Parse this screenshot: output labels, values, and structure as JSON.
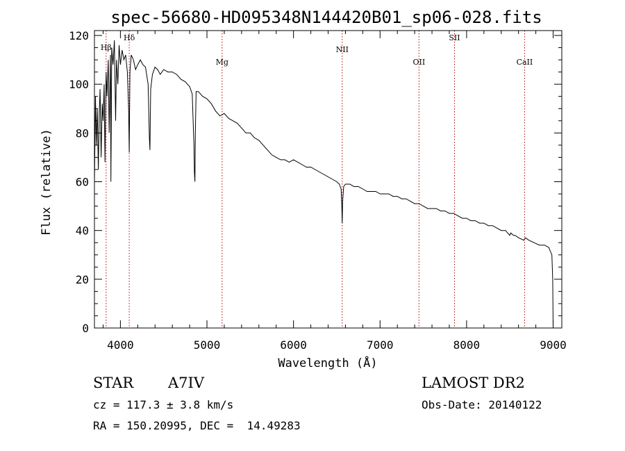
{
  "chart_data": {
    "type": "line",
    "title": "spec-56680-HD095348N144420B01_sp06-028.fits",
    "xlabel": "Wavelength (Å)",
    "ylabel": "Flux (relative)",
    "xlim": [
      3700,
      9100
    ],
    "ylim": [
      0,
      122
    ],
    "x_ticks": [
      4000,
      5000,
      6000,
      7000,
      8000,
      9000
    ],
    "y_ticks": [
      0,
      20,
      40,
      60,
      80,
      100,
      120
    ],
    "grid": false,
    "line_color": "#000000",
    "marker_color": "#aa0000",
    "spectral_lines": [
      {
        "name": "Hβ",
        "x": 3835
      },
      {
        "name": "Hδ",
        "x": 4102
      },
      {
        "name": "Mg",
        "x": 5175
      },
      {
        "name": "NII",
        "x": 6563
      },
      {
        "name": "OII",
        "x": 7450
      },
      {
        "name": "SII",
        "x": 7860
      },
      {
        "name": "CaII",
        "x": 8670
      }
    ],
    "series": [
      {
        "x": [
          3700,
          3712,
          3722,
          3733,
          3745,
          3755,
          3765,
          3777,
          3790,
          3800,
          3812,
          3822,
          3835,
          3845,
          3860,
          3870,
          3885,
          3890,
          3900,
          3915,
          3930,
          3945,
          3955,
          3970,
          3985,
          4000,
          4020,
          4040,
          4060,
          4080,
          4095,
          4102,
          4110,
          4125,
          4150,
          4175,
          4200,
          4230,
          4260,
          4290,
          4320,
          4335,
          4341,
          4350,
          4370,
          4400,
          4430,
          4460,
          4500,
          4550,
          4600,
          4650,
          4700,
          4750,
          4800,
          4830,
          4850,
          4855,
          4861,
          4866,
          4875,
          4900,
          4950,
          5000,
          5050,
          5100,
          5150,
          5200,
          5250,
          5300,
          5350,
          5400,
          5450,
          5500,
          5550,
          5600,
          5650,
          5700,
          5750,
          5800,
          5850,
          5900,
          5950,
          6000,
          6050,
          6100,
          6150,
          6200,
          6250,
          6300,
          6350,
          6400,
          6450,
          6500,
          6530,
          6550,
          6558,
          6563,
          6568,
          6580,
          6600,
          6650,
          6700,
          6750,
          6800,
          6850,
          6900,
          6950,
          7000,
          7050,
          7100,
          7150,
          7200,
          7250,
          7300,
          7350,
          7400,
          7450,
          7500,
          7550,
          7600,
          7650,
          7700,
          7750,
          7800,
          7850,
          7900,
          7950,
          8000,
          8050,
          8100,
          8150,
          8200,
          8250,
          8300,
          8350,
          8400,
          8450,
          8498,
          8510,
          8542,
          8560,
          8600,
          8662,
          8680,
          8720,
          8780,
          8840,
          8900,
          8950,
          8985,
          8995,
          9000
        ],
        "y": [
          60,
          95,
          75,
          90,
          65,
          88,
          98,
          70,
          92,
          85,
          100,
          68,
          105,
          95,
          110,
          80,
          112,
          60,
          115,
          108,
          118,
          85,
          110,
          100,
          116,
          108,
          114,
          110,
          112,
          105,
          90,
          72,
          105,
          112,
          110,
          106,
          108,
          110,
          108,
          107,
          100,
          78,
          73,
          98,
          104,
          107,
          106,
          104,
          106,
          105,
          105,
          104,
          102,
          101,
          99,
          96,
          75,
          64,
          60,
          80,
          97,
          97,
          95,
          94,
          92,
          89,
          87,
          88,
          86,
          85,
          84,
          82,
          80,
          80,
          78,
          77,
          75,
          73,
          71,
          70,
          69,
          69,
          68,
          69,
          68,
          67,
          66,
          66,
          65,
          64,
          63,
          62,
          61,
          60,
          59,
          57,
          50,
          43,
          52,
          58,
          59,
          59,
          58,
          58,
          57,
          56,
          56,
          56,
          55,
          55,
          55,
          54,
          54,
          53,
          53,
          52,
          51,
          51,
          50,
          49,
          49,
          49,
          48,
          48,
          47,
          47,
          46,
          45,
          45,
          44,
          44,
          43,
          43,
          42,
          42,
          41,
          40,
          40,
          38,
          39,
          38,
          38,
          37,
          36,
          37,
          36,
          35,
          34,
          34,
          33,
          30,
          20,
          0
        ]
      }
    ]
  },
  "info": {
    "class_label": "STAR",
    "subclass": "A7IV",
    "survey": "LAMOST DR2",
    "cz": "cz = 117.3 ± 3.8 km/s",
    "obs_date": "Obs-Date: 20140122",
    "coords": "RA = 150.20995, DEC =  14.49283"
  }
}
